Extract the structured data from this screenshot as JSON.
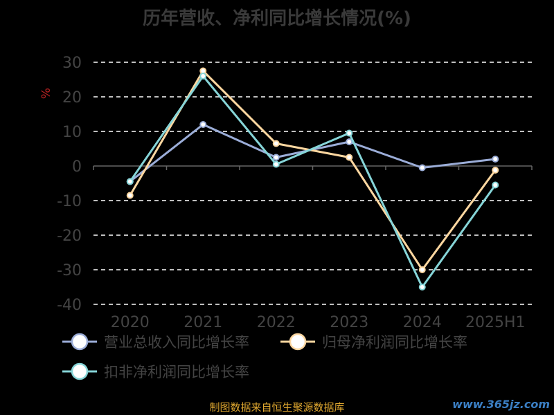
{
  "title": "历年营收、净利同比增长情况(%)",
  "source": "制图数据来自恒生聚源数据库",
  "watermark": "www.365jz.com",
  "chart_data": {
    "type": "line",
    "categories": [
      "2020",
      "2021",
      "2022",
      "2023",
      "2024",
      "2025H1"
    ],
    "ylabel": "%",
    "ylim": [
      -40,
      30
    ],
    "yticks": [
      30,
      20,
      10,
      0,
      -10,
      -20,
      -30,
      -40
    ],
    "grid": true,
    "legend_position": "bottom",
    "series": [
      {
        "name": "营业总收入同比增长率",
        "color": "#9badd8",
        "values": [
          -4.5,
          12,
          2.5,
          7,
          -0.5,
          2
        ]
      },
      {
        "name": "归母净利润同比增长率",
        "color": "#fdd7a0",
        "values": [
          -8.5,
          27.5,
          6.5,
          2.5,
          -30,
          -1.2
        ]
      },
      {
        "name": "扣非净利润同比增长率",
        "color": "#86d5d8",
        "values": [
          -4.5,
          26,
          0.5,
          9.5,
          -35,
          -5.5
        ]
      }
    ]
  }
}
